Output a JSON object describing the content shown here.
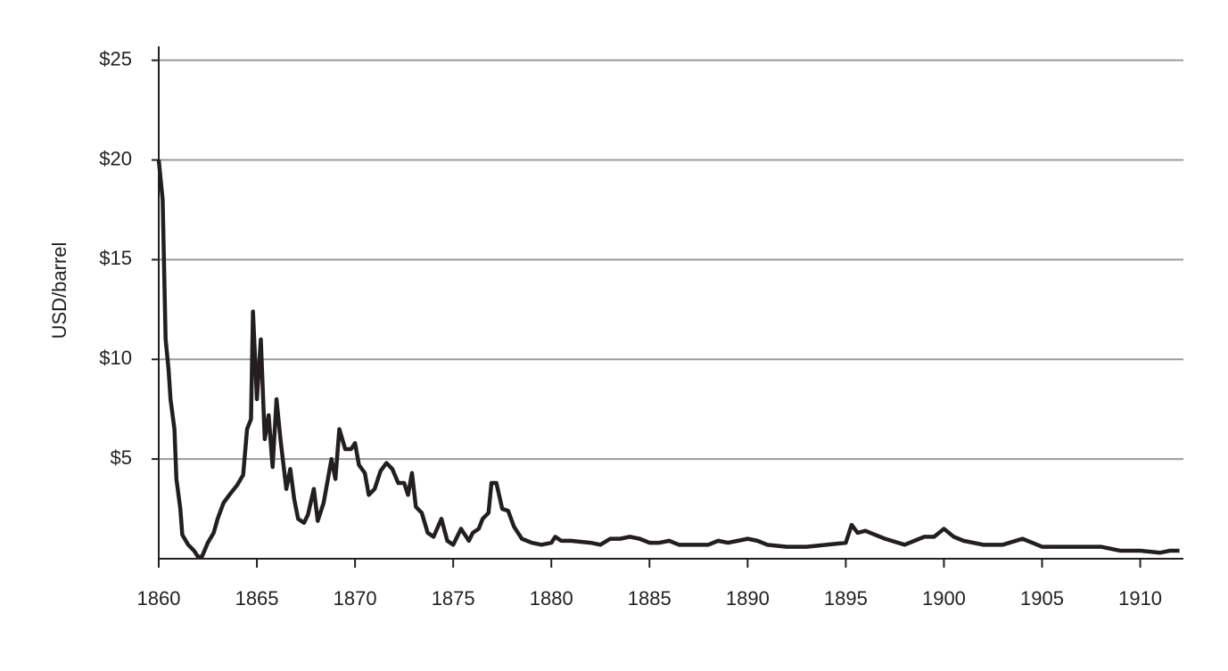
{
  "chart_data": {
    "type": "line",
    "y_label": "USD/barrel",
    "xlim": [
      1860,
      1912.2
    ],
    "xticks": [
      1860,
      1865,
      1870,
      1875,
      1880,
      1885,
      1890,
      1895,
      1900,
      1905,
      1910
    ],
    "ylim": [
      0,
      25.7
    ],
    "yticks": [
      {
        "value": 5,
        "label": "$5"
      },
      {
        "value": 10,
        "label": "$10"
      },
      {
        "value": 15,
        "label": "$15"
      },
      {
        "value": 20,
        "label": "$20"
      },
      {
        "value": 25,
        "label": "$25"
      }
    ],
    "grid": true,
    "series": [
      {
        "color": "#231f20",
        "x": [
          1860,
          1860.2,
          1860.35,
          1860.5,
          1860.6,
          1860.8,
          1860.9,
          1861.1,
          1861.2,
          1861.5,
          1861.8,
          1862,
          1862.2,
          1862.5,
          1862.8,
          1863,
          1863.3,
          1863.6,
          1864,
          1864.3,
          1864.5,
          1864.7,
          1864.8,
          1865,
          1865.2,
          1865.4,
          1865.6,
          1865.8,
          1866,
          1866.2,
          1866.5,
          1866.7,
          1866.9,
          1867.1,
          1867.4,
          1867.6,
          1867.9,
          1868.1,
          1868.4,
          1868.8,
          1869,
          1869.2,
          1869.5,
          1869.8,
          1870,
          1870.2,
          1870.5,
          1870.7,
          1871,
          1871.3,
          1871.6,
          1871.9,
          1872.2,
          1872.5,
          1872.7,
          1872.9,
          1873.1,
          1873.4,
          1873.7,
          1874,
          1874.4,
          1874.7,
          1875,
          1875.4,
          1875.8,
          1876,
          1876.3,
          1876.5,
          1876.8,
          1876.95,
          1877.2,
          1877.5,
          1877.8,
          1878.1,
          1878.5,
          1879,
          1879.5,
          1880,
          1880.2,
          1880.5,
          1881,
          1882,
          1882.5,
          1883,
          1883.5,
          1884,
          1884.5,
          1885,
          1885.5,
          1886,
          1886.5,
          1887,
          1888,
          1888.5,
          1889,
          1889.5,
          1890,
          1890.5,
          1891,
          1892,
          1893,
          1894,
          1895,
          1895.3,
          1895.6,
          1896,
          1896.5,
          1897,
          1898,
          1899,
          1899.5,
          1900,
          1900.5,
          1901,
          1902,
          1903,
          1904,
          1904.5,
          1905,
          1906,
          1907,
          1908,
          1909,
          1910,
          1911,
          1911.5,
          1912
        ],
        "values": [
          20,
          18,
          11,
          9.5,
          8,
          6.5,
          4,
          2.5,
          1.2,
          0.7,
          0.4,
          0.1,
          0.1,
          0.8,
          1.3,
          2,
          2.8,
          3.2,
          3.7,
          4.2,
          6.5,
          7,
          12.4,
          8,
          11,
          6,
          7.2,
          4.6,
          8,
          6,
          3.5,
          4.5,
          3,
          2,
          1.8,
          2.2,
          3.5,
          1.9,
          2.8,
          5,
          4,
          6.5,
          5.5,
          5.5,
          5.8,
          4.7,
          4.3,
          3.2,
          3.5,
          4.4,
          4.8,
          4.5,
          3.8,
          3.8,
          3.2,
          4.3,
          2.6,
          2.3,
          1.3,
          1.1,
          2,
          0.9,
          0.7,
          1.5,
          0.9,
          1.3,
          1.5,
          2,
          2.3,
          3.8,
          3.8,
          2.5,
          2.4,
          1.6,
          1,
          0.8,
          0.7,
          0.8,
          1.1,
          0.9,
          0.9,
          0.8,
          0.7,
          1,
          1,
          1.1,
          1,
          0.8,
          0.8,
          0.9,
          0.7,
          0.7,
          0.7,
          0.9,
          0.8,
          0.9,
          1,
          0.9,
          0.7,
          0.6,
          0.6,
          0.7,
          0.8,
          1.7,
          1.3,
          1.4,
          1.2,
          1,
          0.7,
          1.1,
          1.1,
          1.5,
          1.1,
          0.9,
          0.7,
          0.7,
          1,
          0.8,
          0.6,
          0.6,
          0.6,
          0.6,
          0.4,
          0.4,
          0.3,
          0.4,
          0.4
        ]
      }
    ]
  }
}
